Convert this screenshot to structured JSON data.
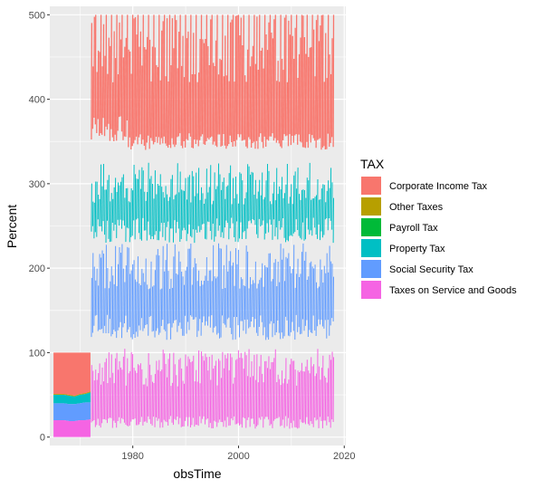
{
  "chart_data": {
    "type": "area",
    "xlabel": "obsTime",
    "ylabel": "Percent",
    "xlim": [
      1964.3,
      2020.3
    ],
    "ylim": [
      -10,
      510
    ],
    "x_ticks": [
      1980,
      2000,
      2020
    ],
    "y_ticks": [
      0,
      100,
      200,
      300,
      400,
      500
    ],
    "grid": true,
    "legend_title": "TAX",
    "legend_position": "right",
    "start_year": 1965,
    "series": [
      {
        "name": "Corporate Income Tax",
        "color": "#F8766D"
      },
      {
        "name": "Other Taxes",
        "color": "#B79F00"
      },
      {
        "name": "Payroll Tax",
        "color": "#00BA38"
      },
      {
        "name": "Property Tax",
        "color": "#00BFC4"
      },
      {
        "name": "Social Security Tax",
        "color": "#619CFF"
      },
      {
        "name": "Taxes on Service and Goods",
        "color": "#F564E3"
      }
    ],
    "early_period": {
      "years": [
        1965,
        1966,
        1967,
        1968,
        1969,
        1970,
        1971,
        1972
      ],
      "taxes_on_service_and_goods": [
        20,
        20,
        20,
        19,
        19,
        20,
        20,
        21
      ],
      "social_security_tax": [
        20,
        20,
        20,
        20,
        20,
        20,
        21,
        20
      ],
      "property_tax": [
        10,
        10,
        10,
        10,
        9,
        10,
        10,
        12
      ],
      "other_taxes": [
        1,
        1,
        1,
        1,
        1,
        1,
        1,
        1
      ],
      "corporate_income_tax": [
        49,
        49,
        49,
        50,
        51,
        49,
        48,
        46
      ]
    },
    "later_period_range": {
      "x": [
        1972,
        2018
      ],
      "corporate_income_tax": [
        340,
        500
      ],
      "property_tax": [
        225,
        330
      ],
      "social_security_tax": [
        115,
        235
      ],
      "taxes_on_service_and_goods": [
        10,
        110
      ]
    }
  }
}
